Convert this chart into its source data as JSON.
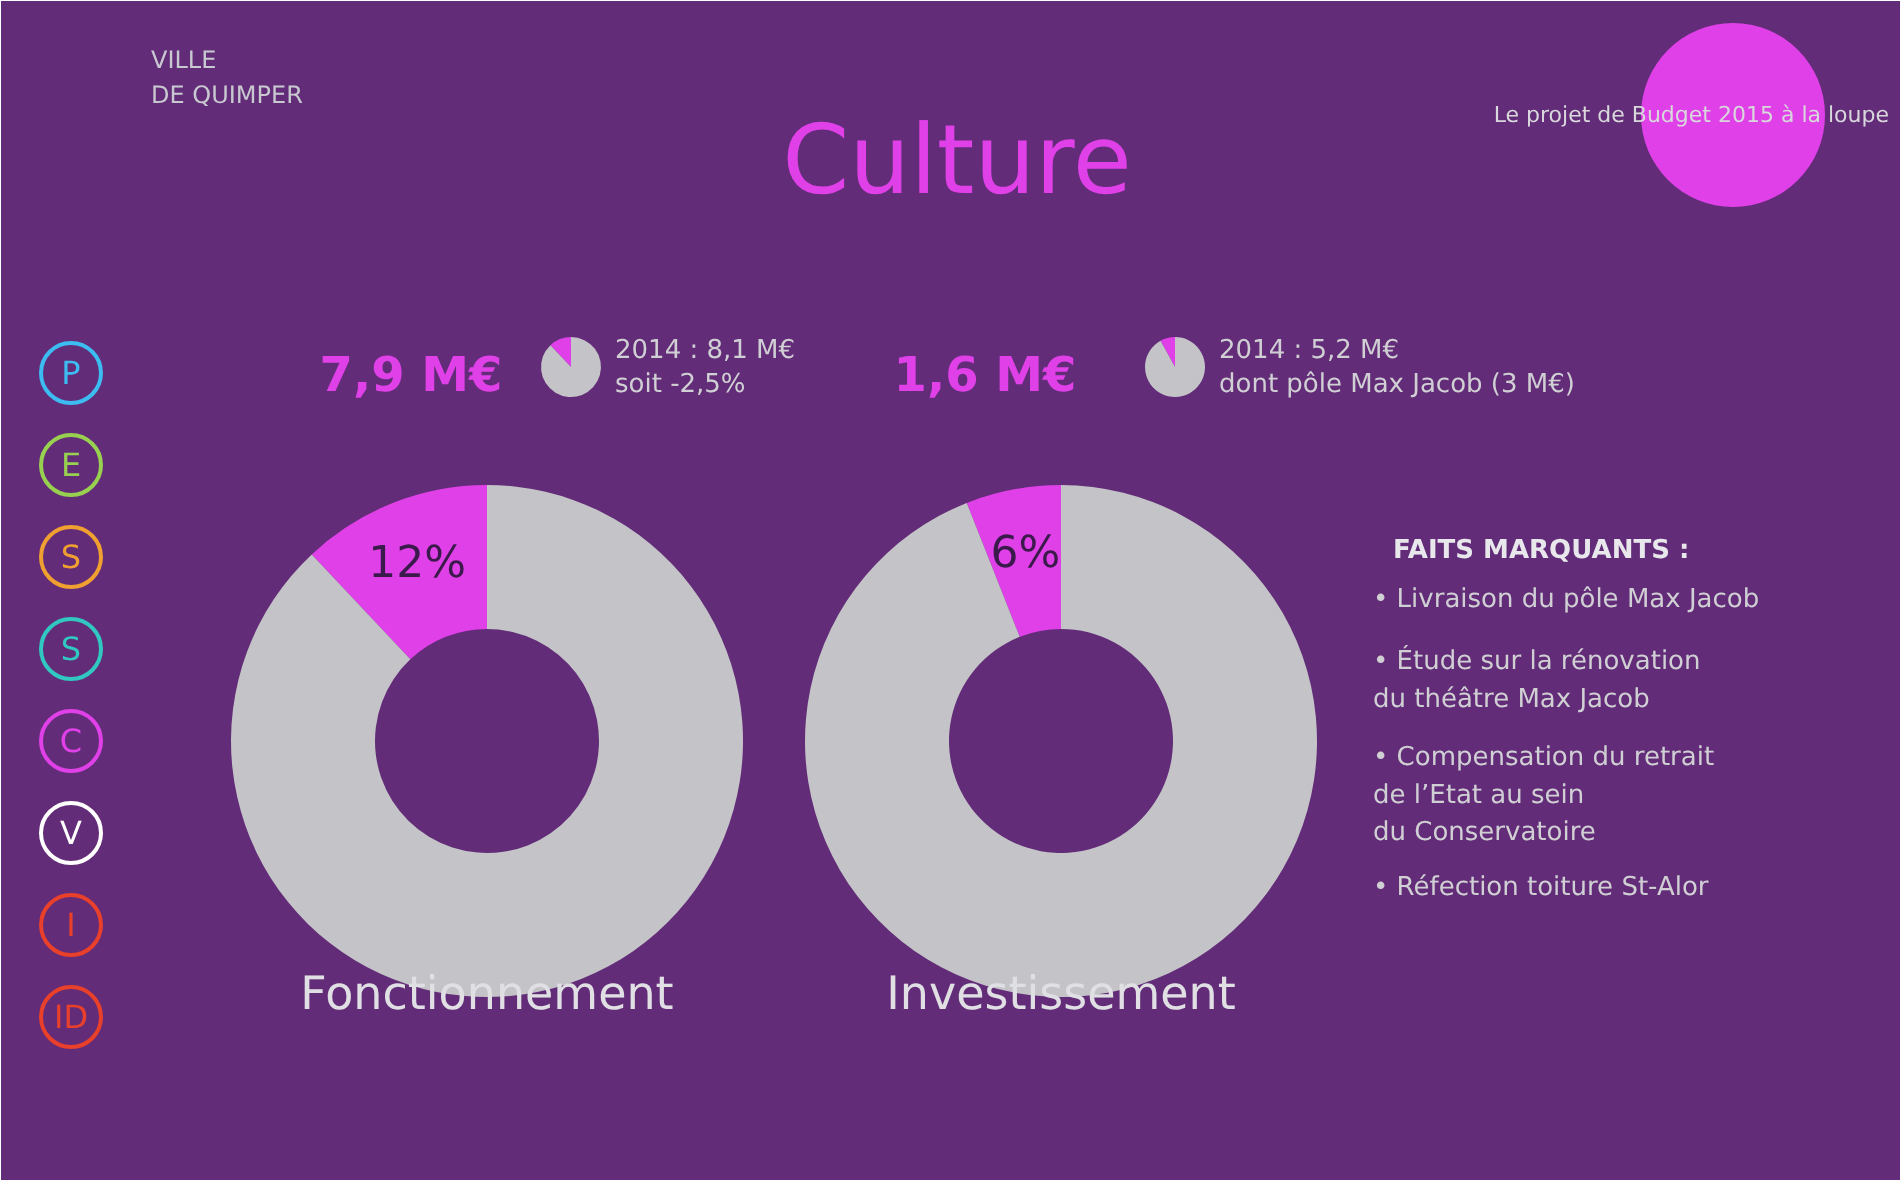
{
  "chart_data": [
    {
      "type": "other",
      "title": "Culture",
      "annotations": [
        "VILLE\nDE QUIMPER",
        "Le projet de Budget 2015 à la loupe"
      ]
    },
    {
      "type": "other",
      "annotations": [
        "P",
        "E",
        "S",
        "S",
        "C",
        "V",
        "I",
        "ID"
      ]
    },
    {
      "type": "donut",
      "title": "7,9 M€",
      "xlabel": "Fonctionnement",
      "categories": [
        null,
        null
      ],
      "values": [
        12,
        88
      ],
      "colors": [
        "#e040e8",
        "#c4c4c8"
      ],
      "value_labels": [
        "12%",
        null
      ]
    },
    {
      "type": "pie",
      "categories": [
        null,
        null
      ],
      "values": [
        12,
        88
      ],
      "colors": [
        "#e040e8",
        "#c4c4c8"
      ],
      "annotations": [
        "2014 : 8,1 M€",
        "soit -2,5%"
      ]
    },
    {
      "type": "donut",
      "title": "1,6 M€",
      "xlabel": "Investissement",
      "categories": [
        null,
        null
      ],
      "values": [
        6,
        94
      ],
      "colors": [
        "#e040e8",
        "#c4c4c8"
      ],
      "value_labels": [
        "6%",
        null
      ]
    },
    {
      "type": "pie",
      "categories": [
        null,
        null
      ],
      "values": [
        8,
        92
      ],
      "colors": [
        "#e040e8",
        "#c4c4c8"
      ],
      "annotations": [
        "2014 : 5,2 M€",
        "dont pôle Max Jacob (3 M€)"
      ]
    },
    {
      "type": "other",
      "title": "FAITS MARQUANTS :",
      "annotations": [
        "• Livraison du pôle Max Jacob",
        "• Étude sur la rénovation\n  du théâtre Max Jacob",
        "• Compensation du retrait\n  de l’Etat au sein\n  du Conservatoire",
        "• Réfection toiture St-Alor"
      ]
    }
  ]
}
